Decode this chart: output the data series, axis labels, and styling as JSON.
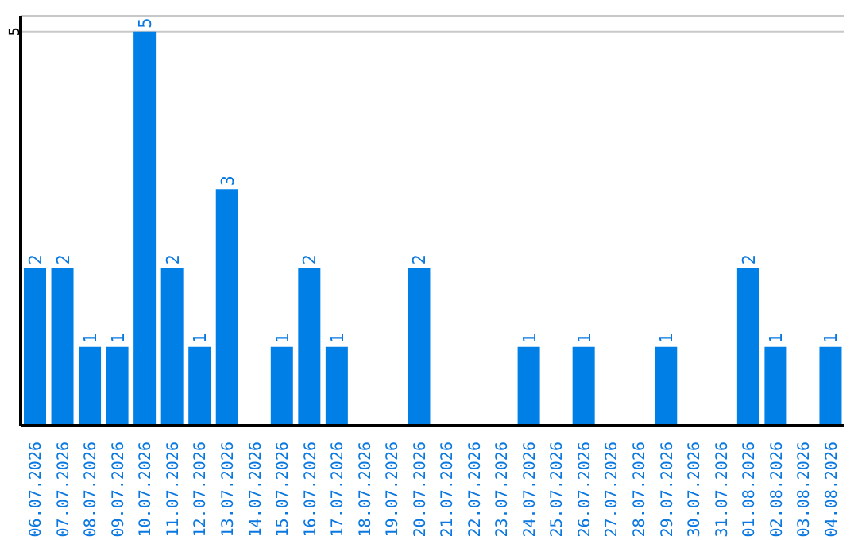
{
  "chart_data": {
    "type": "bar",
    "categories": [
      "06.07.2026",
      "07.07.2026",
      "08.07.2026",
      "09.07.2026",
      "10.07.2026",
      "11.07.2026",
      "12.07.2026",
      "13.07.2026",
      "14.07.2026",
      "15.07.2026",
      "16.07.2026",
      "17.07.2026",
      "18.07.2026",
      "19.07.2026",
      "20.07.2026",
      "21.07.2026",
      "22.07.2026",
      "23.07.2026",
      "24.07.2026",
      "25.07.2026",
      "26.07.2026",
      "27.07.2026",
      "28.07.2026",
      "29.07.2026",
      "30.07.2026",
      "31.07.2026",
      "01.08.2026",
      "02.08.2026",
      "03.08.2026",
      "04.08.2026"
    ],
    "values": [
      2,
      2,
      1,
      1,
      5,
      2,
      1,
      3,
      0,
      1,
      2,
      1,
      0,
      0,
      2,
      0,
      0,
      0,
      1,
      0,
      1,
      0,
      0,
      1,
      0,
      0,
      2,
      1,
      0,
      1
    ],
    "value_labels": [
      "2",
      "2",
      "1",
      "1",
      "5",
      "2",
      "1",
      "3",
      null,
      "1",
      "2",
      "1",
      null,
      null,
      "2",
      null,
      null,
      null,
      "1",
      null,
      "1",
      null,
      null,
      "1",
      null,
      null,
      "2",
      "1",
      null,
      "1"
    ],
    "color": "#0080e6",
    "ylim": [
      0,
      5.2
    ],
    "yticks": [
      5
    ],
    "grid": "y"
  }
}
